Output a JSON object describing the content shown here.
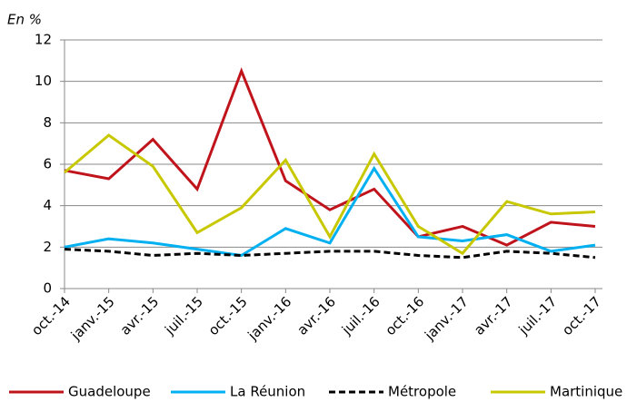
{
  "chart_data": {
    "type": "line",
    "y_label": "En %",
    "categories": [
      "oct.-14",
      "janv.-15",
      "avr.-15",
      "juil.-15",
      "oct.-15",
      "janv.-16",
      "avr.-16",
      "juil.-16",
      "oct.-16",
      "janv.-17",
      "avr.-17",
      "juil.-17",
      "oct.-17"
    ],
    "series": [
      {
        "name": "Guadeloupe",
        "color": "#c0141c",
        "values": [
          5.7,
          5.3,
          7.2,
          4.8,
          10.5,
          5.2,
          3.8,
          4.8,
          2.5,
          3.0,
          2.1,
          3.2,
          3.0
        ]
      },
      {
        "name": "La Réunion",
        "color": "#00b0f0",
        "values": [
          2.0,
          2.4,
          2.2,
          1.9,
          1.6,
          2.9,
          2.2,
          5.8,
          2.5,
          2.3,
          2.6,
          1.8,
          2.1
        ]
      },
      {
        "name": "Métropole",
        "color": "#000000",
        "dashed": true,
        "values": [
          1.9,
          1.8,
          1.6,
          1.7,
          1.6,
          1.7,
          1.8,
          1.8,
          1.6,
          1.5,
          1.8,
          1.7,
          1.5
        ]
      },
      {
        "name": "Martinique",
        "color": "#c8c800",
        "values": [
          5.6,
          7.4,
          5.9,
          2.7,
          3.9,
          6.2,
          2.5,
          6.5,
          3.0,
          1.7,
          4.2,
          3.6,
          3.7
        ]
      }
    ],
    "ylim": [
      0,
      12
    ],
    "yticks": [
      0,
      2,
      4,
      6,
      8,
      10,
      12
    ],
    "grid": true,
    "legend": "bottom"
  }
}
